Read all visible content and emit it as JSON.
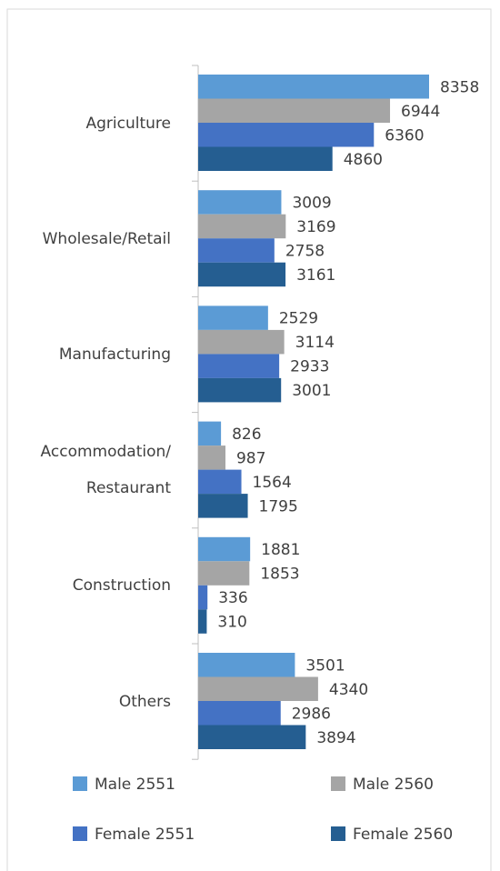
{
  "chart_data": {
    "type": "bar",
    "orientation": "horizontal",
    "categories": [
      "Agriculture",
      "Wholesale/Retail",
      "Manufacturing",
      "Accommodation/ Restaurant",
      "Construction",
      "Others"
    ],
    "series": [
      {
        "name": "Male 2551",
        "color": "#5b9bd5",
        "values": [
          8358,
          3009,
          2529,
          826,
          1881,
          3501
        ]
      },
      {
        "name": "Male 2560",
        "color": "#a5a5a5",
        "values": [
          6944,
          3169,
          3114,
          987,
          1853,
          4340
        ]
      },
      {
        "name": "Female 2551",
        "color": "#4472c4",
        "values": [
          6360,
          2758,
          2933,
          1564,
          336,
          2986
        ]
      },
      {
        "name": "Female 2560",
        "color": "#255e91",
        "values": [
          4860,
          3161,
          3001,
          1795,
          310,
          3894
        ]
      }
    ],
    "legend": "bottom"
  }
}
